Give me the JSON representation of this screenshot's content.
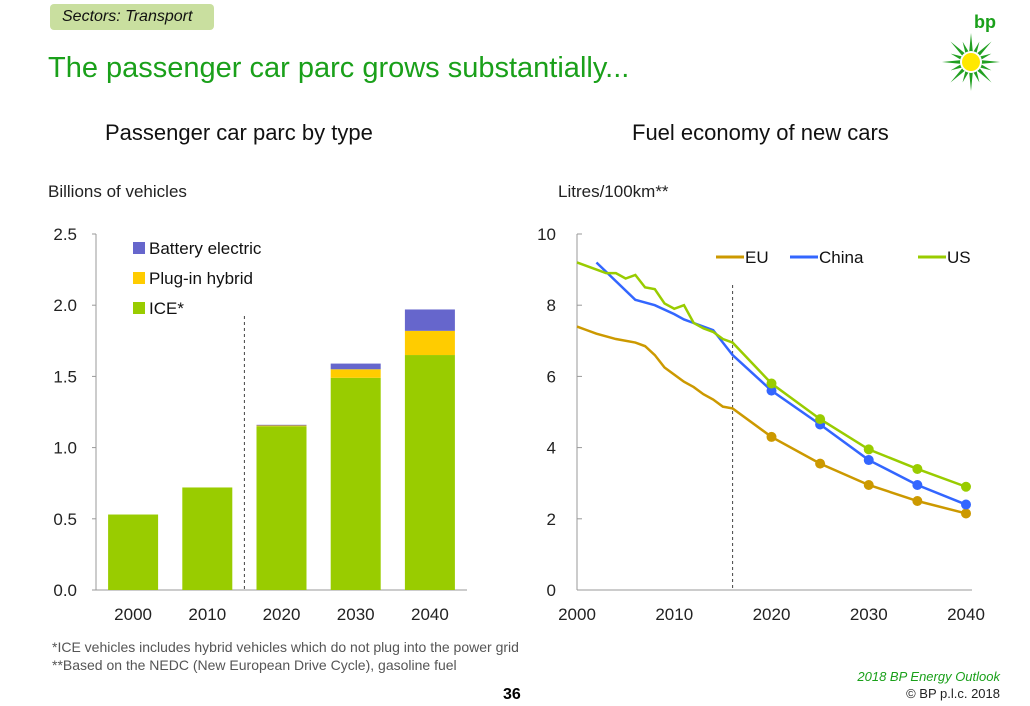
{
  "header": {
    "section_tag": "Sectors: Transport",
    "title": "The passenger car parc grows substantially..."
  },
  "logo": {
    "text": "bp",
    "colors": {
      "rays": "#22a022",
      "center": "#ffe800"
    }
  },
  "chart_data": [
    {
      "type": "bar",
      "stacked": true,
      "title": "Passenger car parc by type",
      "ylabel": "Billions of vehicles",
      "xlabel": "",
      "ylim": [
        0,
        2.5
      ],
      "yticks": [
        "0.0",
        "0.5",
        "1.0",
        "1.5",
        "2.0",
        "2.5"
      ],
      "categories": [
        "2000",
        "2010",
        "2020",
        "2030",
        "2040"
      ],
      "series": [
        {
          "name": "ICE*",
          "color": "#99cc00",
          "values": [
            0.53,
            0.72,
            1.15,
            1.49,
            1.65
          ]
        },
        {
          "name": "Plug-in hybrid",
          "color": "#ffcc00",
          "values": [
            0,
            0,
            0.005,
            0.06,
            0.17
          ]
        },
        {
          "name": "Battery electric",
          "color": "#6666cc",
          "values": [
            0,
            0,
            0.005,
            0.04,
            0.15
          ]
        }
      ],
      "legend": "top-left",
      "grid": false,
      "projection_divider_between": [
        "2010",
        "2020"
      ]
    },
    {
      "type": "line",
      "title": "Fuel economy of new cars",
      "ylabel": "Litres/100km**",
      "xlabel": "",
      "xlim": [
        2000,
        2040
      ],
      "ylim": [
        0,
        10
      ],
      "xticks": [
        "2000",
        "2010",
        "2020",
        "2030",
        "2040"
      ],
      "yticks": [
        "0",
        "2",
        "4",
        "6",
        "8",
        "10"
      ],
      "legend": "top",
      "grid": false,
      "projection_divider_x": 2016,
      "series": [
        {
          "name": "EU",
          "color": "#cc9900",
          "points": [
            [
              2000,
              7.4
            ],
            [
              2001,
              7.3
            ],
            [
              2002,
              7.2
            ],
            [
              2004,
              7.05
            ],
            [
              2006,
              6.95
            ],
            [
              2007,
              6.85
            ],
            [
              2008,
              6.6
            ],
            [
              2009,
              6.25
            ],
            [
              2010,
              6.05
            ],
            [
              2011,
              5.85
            ],
            [
              2012,
              5.7
            ],
            [
              2013,
              5.5
            ],
            [
              2014,
              5.35
            ],
            [
              2015,
              5.15
            ],
            [
              2016,
              5.1
            ],
            [
              2020,
              4.3
            ],
            [
              2025,
              3.55
            ],
            [
              2030,
              2.95
            ],
            [
              2035,
              2.5
            ],
            [
              2040,
              2.15
            ]
          ]
        },
        {
          "name": "China",
          "color": "#3366ff",
          "points": [
            [
              2002,
              9.2
            ],
            [
              2006,
              8.15
            ],
            [
              2008,
              8.0
            ],
            [
              2010,
              7.75
            ],
            [
              2011,
              7.6
            ],
            [
              2012,
              7.5
            ],
            [
              2014,
              7.3
            ],
            [
              2016,
              6.6
            ],
            [
              2020,
              5.6
            ],
            [
              2025,
              4.65
            ],
            [
              2030,
              3.65
            ],
            [
              2035,
              2.95
            ],
            [
              2040,
              2.4
            ]
          ]
        },
        {
          "name": "US",
          "color": "#99cc00",
          "points": [
            [
              2000,
              9.2
            ],
            [
              2002,
              9.0
            ],
            [
              2003,
              8.9
            ],
            [
              2004,
              8.9
            ],
            [
              2005,
              8.75
            ],
            [
              2006,
              8.85
            ],
            [
              2007,
              8.5
            ],
            [
              2008,
              8.45
            ],
            [
              2009,
              8.05
            ],
            [
              2010,
              7.9
            ],
            [
              2011,
              8.0
            ],
            [
              2012,
              7.5
            ],
            [
              2013,
              7.35
            ],
            [
              2014,
              7.25
            ],
            [
              2015,
              7.05
            ],
            [
              2016,
              6.95
            ],
            [
              2020,
              5.8
            ],
            [
              2025,
              4.8
            ],
            [
              2030,
              3.95
            ],
            [
              2035,
              3.4
            ],
            [
              2040,
              2.9
            ]
          ]
        }
      ],
      "markers_from_year": 2020
    }
  ],
  "footnotes": [
    "*ICE vehicles includes hybrid vehicles which do not plug into the power grid",
    "**Based on the NEDC (New European Drive Cycle), gasoline fuel"
  ],
  "footer": {
    "page_number": "36",
    "publication": "2018 BP Energy Outlook",
    "copyright": "© BP p.l.c. 2018"
  }
}
